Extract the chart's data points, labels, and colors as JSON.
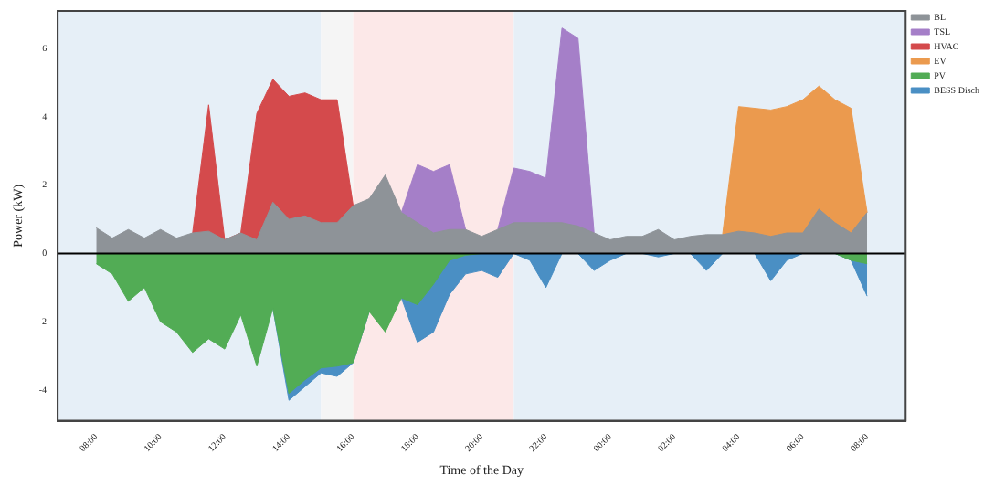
{
  "chart_data": {
    "type": "area",
    "xlabel": "Time of the Day",
    "ylabel": "Power (kW)",
    "x": [
      "--01-01T08:00",
      "--01-01T08:30",
      "--01-01T09:00",
      "--01-01T09:30",
      "--01-01T10:00",
      "--01-01T10:30",
      "--01-01T11:00",
      "--01-01T11:30",
      "--01-01T12:00",
      "--01-01T12:30",
      "--01-01T13:00",
      "--01-01T13:30",
      "--01-01T14:00",
      "--01-01T14:30",
      "--01-01T15:00",
      "--01-01T15:30",
      "--01-01T16:00",
      "--01-01T16:30",
      "--01-01T17:00",
      "--01-01T17:30",
      "--01-01T18:00",
      "--01-01T18:30",
      "--01-01T19:00",
      "--01-01T19:30",
      "--01-01T20:00",
      "--01-01T20:30",
      "--01-01T21:00",
      "--01-01T21:30",
      "--01-01T22:00",
      "--01-01T22:30",
      "--01-01T23:00",
      "--01-01T23:30",
      "--01-02T00:00",
      "--01-02T00:30",
      "--01-02T01:00",
      "--01-02T01:30",
      "--01-02T02:00",
      "--01-02T02:30",
      "--01-02T03:00",
      "--01-02T03:30",
      "--01-02T04:00",
      "--01-02T04:30",
      "--01-02T05:00",
      "--01-02T05:30",
      "--01-02T06:00",
      "--01-02T06:30",
      "--01-02T07:00",
      "--01-02T07:30",
      "--01-02T08:00"
    ],
    "series": [
      {
        "name": "BL",
        "color": "#8e9398",
        "values": [
          0.75,
          0.45,
          0.7,
          0.45,
          0.7,
          0.45,
          0.6,
          0.65,
          0.4,
          0.6,
          0.4,
          1.5,
          1.0,
          1.1,
          0.9,
          0.9,
          1.4,
          1.6,
          2.3,
          1.2,
          0.9,
          0.6,
          0.7,
          0.7,
          0.5,
          0.7,
          0.9,
          0.9,
          0.9,
          0.9,
          0.8,
          0.6,
          0.4,
          0.5,
          0.5,
          0.7,
          0.4,
          0.5,
          0.55,
          0.55,
          0.65,
          0.6,
          0.5,
          0.6,
          0.6,
          1.3,
          0.9,
          0.6,
          1.2
        ]
      },
      {
        "name": "TSL",
        "color": "#a57fc8",
        "values": [
          null,
          null,
          null,
          null,
          null,
          null,
          null,
          null,
          null,
          null,
          null,
          null,
          null,
          null,
          null,
          null,
          null,
          null,
          null,
          1.2,
          2.6,
          2.4,
          2.6,
          0.7,
          null,
          0.7,
          2.5,
          2.4,
          2.2,
          6.6,
          6.3,
          0.6,
          null,
          null,
          null,
          null,
          null,
          null,
          null,
          null,
          null,
          null,
          null,
          null,
          null,
          null,
          null,
          null,
          null
        ]
      },
      {
        "name": "HVAC",
        "color": "#d44a4c",
        "values": [
          null,
          null,
          null,
          null,
          null,
          null,
          0.6,
          4.35,
          0.4,
          0.6,
          4.1,
          5.1,
          4.6,
          4.7,
          4.5,
          4.5,
          1.4,
          null,
          null,
          null,
          null,
          null,
          null,
          null,
          null,
          null,
          null,
          null,
          null,
          null,
          null,
          null,
          null,
          null,
          null,
          null,
          null,
          null,
          null,
          null,
          null,
          null,
          null,
          null,
          null,
          null,
          null,
          null,
          null
        ]
      },
      {
        "name": "EV",
        "color": "#eb9a4e",
        "values": [
          null,
          null,
          null,
          null,
          null,
          null,
          null,
          null,
          null,
          null,
          null,
          null,
          null,
          null,
          null,
          null,
          null,
          null,
          null,
          null,
          null,
          null,
          null,
          null,
          null,
          null,
          null,
          null,
          null,
          null,
          null,
          null,
          null,
          null,
          null,
          null,
          null,
          null,
          null,
          0.55,
          4.3,
          4.25,
          4.2,
          4.3,
          4.5,
          4.9,
          4.5,
          4.25,
          1.2
        ]
      },
      {
        "name": "PV",
        "color": "#52ac55",
        "values": [
          -0.3,
          -0.6,
          -1.4,
          -1.0,
          -2.0,
          -2.3,
          -2.9,
          -2.5,
          -2.8,
          -1.8,
          -3.3,
          -1.6,
          -4.1,
          -3.7,
          -3.35,
          -3.3,
          -3.2,
          -1.7,
          -2.3,
          -1.3,
          -1.5,
          -0.9,
          -0.2,
          -0.05,
          0,
          0,
          0,
          0,
          0,
          0,
          0,
          0,
          0,
          0,
          0,
          0,
          0,
          0,
          0,
          0,
          0,
          0,
          0,
          0,
          0,
          0,
          0,
          -0.2,
          -0.3
        ]
      },
      {
        "name": "BESS Disch",
        "color": "#4a8fc4",
        "values": [
          null,
          null,
          null,
          null,
          null,
          null,
          null,
          null,
          null,
          null,
          null,
          -1.6,
          -4.3,
          -3.9,
          -3.5,
          -3.6,
          -3.2,
          -1.7,
          null,
          -1.3,
          -2.6,
          -2.3,
          -1.2,
          -0.6,
          -0.5,
          -0.7,
          0,
          -0.2,
          -1.0,
          0,
          0,
          -0.5,
          -0.2,
          0,
          0,
          -0.1,
          0,
          0,
          -0.5,
          0,
          0,
          0,
          -0.8,
          -0.2,
          0,
          0,
          0,
          -0.2,
          -1.25
        ]
      }
    ],
    "xlim": [
      "--01-01T06:48",
      "--01-02T09:12"
    ],
    "xticks": [
      {
        "value": "--01-01T08:00",
        "label": "08:00"
      },
      {
        "value": "--01-01T10:00",
        "label": "10:00"
      },
      {
        "value": "--01-01T12:00",
        "label": "12:00"
      },
      {
        "value": "--01-01T14:00",
        "label": "14:00"
      },
      {
        "value": "--01-01T16:00",
        "label": "16:00"
      },
      {
        "value": "--01-01T18:00",
        "label": "18:00"
      },
      {
        "value": "--01-01T20:00",
        "label": "20:00"
      },
      {
        "value": "--01-01T22:00",
        "label": "22:00"
      },
      {
        "value": "--01-02T00:00",
        "label": "00:00"
      },
      {
        "value": "--01-02T02:00",
        "label": "02:00"
      },
      {
        "value": "--01-02T04:00",
        "label": "04:00"
      },
      {
        "value": "--01-02T06:00",
        "label": "06:00"
      },
      {
        "value": "--01-02T08:00",
        "label": "08:00"
      }
    ],
    "ylim": [
      -4.9,
      7.1
    ],
    "yticks": [
      -4,
      -2,
      0,
      2,
      4,
      6
    ],
    "bands": [
      {
        "axis": "x",
        "from": "--01-01T06:48",
        "to": "--01-01T15:00",
        "color": "#e6eff7"
      },
      {
        "axis": "x",
        "from": "--01-01T15:00",
        "to": "--01-01T16:00",
        "color": "#f5f5f5"
      },
      {
        "axis": "x",
        "from": "--01-01T16:00",
        "to": "--01-01T21:00",
        "color": "#fce8e8"
      },
      {
        "axis": "x",
        "from": "--01-01T21:00",
        "to": "--01-02T09:12",
        "color": "#e6eff7"
      }
    ],
    "ref_lines": [
      {
        "axis": "y",
        "value": 0,
        "color": "#000000"
      }
    ],
    "legend": "right",
    "grid": false
  }
}
